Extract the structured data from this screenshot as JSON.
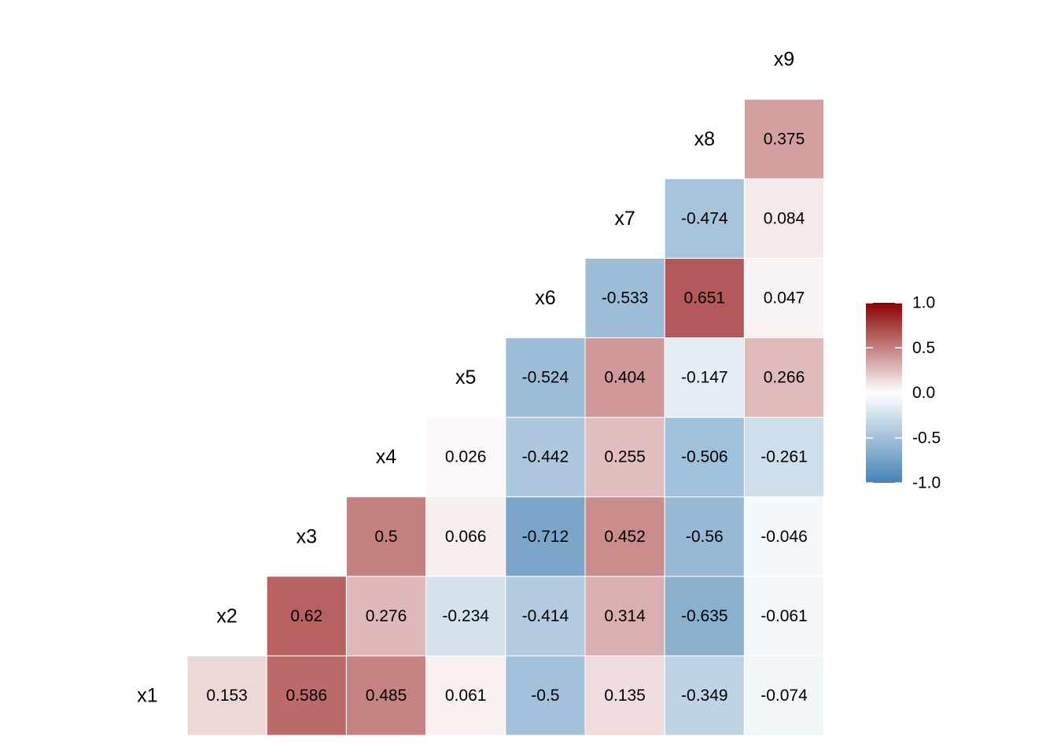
{
  "chart_data": {
    "type": "heatmap",
    "title": "",
    "xlabel": "",
    "ylabel": "",
    "variables": [
      "x1",
      "x2",
      "x3",
      "x4",
      "x5",
      "x6",
      "x7",
      "x8",
      "x9"
    ],
    "value_range": [
      -1,
      1
    ],
    "colors": {
      "low": "#4682B4",
      "mid": "#FFFFFF",
      "high": "#8B0000"
    },
    "legend": {
      "placement": "right",
      "ticks": [
        "1.0",
        "0.5",
        "0.0",
        "-0.5",
        "-1.0"
      ]
    },
    "cells": [
      {
        "row": "x1",
        "col": "x2",
        "value": 0.153,
        "label": "0.153"
      },
      {
        "row": "x1",
        "col": "x3",
        "value": 0.586,
        "label": "0.586"
      },
      {
        "row": "x1",
        "col": "x4",
        "value": 0.485,
        "label": "0.485"
      },
      {
        "row": "x1",
        "col": "x5",
        "value": 0.061,
        "label": "0.061"
      },
      {
        "row": "x1",
        "col": "x6",
        "value": -0.5,
        "label": "-0.5"
      },
      {
        "row": "x1",
        "col": "x7",
        "value": 0.135,
        "label": "0.135"
      },
      {
        "row": "x1",
        "col": "x8",
        "value": -0.349,
        "label": "-0.349"
      },
      {
        "row": "x1",
        "col": "x9",
        "value": -0.074,
        "label": "-0.074"
      },
      {
        "row": "x2",
        "col": "x3",
        "value": 0.62,
        "label": "0.62"
      },
      {
        "row": "x2",
        "col": "x4",
        "value": 0.276,
        "label": "0.276"
      },
      {
        "row": "x2",
        "col": "x5",
        "value": -0.234,
        "label": "-0.234"
      },
      {
        "row": "x2",
        "col": "x6",
        "value": -0.414,
        "label": "-0.414"
      },
      {
        "row": "x2",
        "col": "x7",
        "value": 0.314,
        "label": "0.314"
      },
      {
        "row": "x2",
        "col": "x8",
        "value": -0.635,
        "label": "-0.635"
      },
      {
        "row": "x2",
        "col": "x9",
        "value": -0.061,
        "label": "-0.061"
      },
      {
        "row": "x3",
        "col": "x4",
        "value": 0.5,
        "label": "0.5"
      },
      {
        "row": "x3",
        "col": "x5",
        "value": 0.066,
        "label": "0.066"
      },
      {
        "row": "x3",
        "col": "x6",
        "value": -0.712,
        "label": "-0.712"
      },
      {
        "row": "x3",
        "col": "x7",
        "value": 0.452,
        "label": "0.452"
      },
      {
        "row": "x3",
        "col": "x8",
        "value": -0.56,
        "label": "-0.56"
      },
      {
        "row": "x3",
        "col": "x9",
        "value": -0.046,
        "label": "-0.046"
      },
      {
        "row": "x4",
        "col": "x5",
        "value": 0.026,
        "label": "0.026"
      },
      {
        "row": "x4",
        "col": "x6",
        "value": -0.442,
        "label": "-0.442"
      },
      {
        "row": "x4",
        "col": "x7",
        "value": 0.255,
        "label": "0.255"
      },
      {
        "row": "x4",
        "col": "x8",
        "value": -0.506,
        "label": "-0.506"
      },
      {
        "row": "x4",
        "col": "x9",
        "value": -0.261,
        "label": "-0.261"
      },
      {
        "row": "x5",
        "col": "x6",
        "value": -0.524,
        "label": "-0.524"
      },
      {
        "row": "x5",
        "col": "x7",
        "value": 0.404,
        "label": "0.404"
      },
      {
        "row": "x5",
        "col": "x8",
        "value": -0.147,
        "label": "-0.147"
      },
      {
        "row": "x5",
        "col": "x9",
        "value": 0.266,
        "label": "0.266"
      },
      {
        "row": "x6",
        "col": "x7",
        "value": -0.533,
        "label": "-0.533"
      },
      {
        "row": "x6",
        "col": "x8",
        "value": 0.651,
        "label": "0.651"
      },
      {
        "row": "x6",
        "col": "x9",
        "value": 0.047,
        "label": "0.047"
      },
      {
        "row": "x7",
        "col": "x8",
        "value": -0.474,
        "label": "-0.474"
      },
      {
        "row": "x7",
        "col": "x9",
        "value": 0.084,
        "label": "0.084"
      },
      {
        "row": "x8",
        "col": "x9",
        "value": 0.375,
        "label": "0.375"
      }
    ]
  }
}
